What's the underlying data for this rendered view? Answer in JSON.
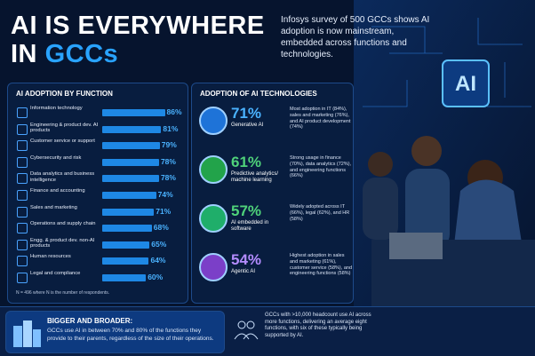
{
  "header": {
    "title_line1": "AI IS EVERYWHERE",
    "title_line2_prefix": "IN ",
    "title_line2_highlight": "GCCs",
    "subtitle": "Infosys survey of 500 GCCs shows AI adoption is now mainstream, embedded across functions and technologies."
  },
  "chart_data": {
    "type": "bar",
    "title": "AI ADOPTION BY FUNCTION",
    "categories": [
      "Information technology",
      "Engineering & product dev. AI products",
      "Customer service or support",
      "Cybersecurity and risk",
      "Data analytics and business intelligence",
      "Finance and accounting",
      "Sales and marketing",
      "Operations and supply chain",
      "Engg. & product dev. non-AI products",
      "Human resources",
      "Legal and compliance"
    ],
    "values": [
      86,
      81,
      79,
      78,
      78,
      74,
      71,
      68,
      65,
      64,
      60
    ],
    "value_labels": [
      "86%",
      "81%",
      "79%",
      "78%",
      "78%",
      "74%",
      "71%",
      "68%",
      "65%",
      "64%",
      "60%"
    ],
    "xlim": [
      0,
      100
    ],
    "color": "#1e88e5",
    "note": "N = 496 where N is the number of respondents."
  },
  "technologies": {
    "title": "ADOPTION OF AI TECHNOLOGIES",
    "items": [
      {
        "percent": "71%",
        "name": "Generative AI",
        "detail": "Most adoption in IT (84%), sales and marketing (76%), and AI product development (74%)"
      },
      {
        "percent": "61%",
        "name": "Predictive analytics/ machine learning",
        "detail": "Strong usage in finance (70%), data analytics (72%), and engineering functions (66%)"
      },
      {
        "percent": "57%",
        "name": "AI embedded in software",
        "detail": "Widely adopted across IT (66%), legal (62%), and HR (58%)"
      },
      {
        "percent": "54%",
        "name": "Agentic AI",
        "detail": "Highest adoption in sales and marketing (61%), customer service (58%), and engineering functions (58%)"
      }
    ]
  },
  "footer": {
    "heading": "BIGGER AND BROADER:",
    "text": "GCCs use AI in between 70% and 80% of the functions they provide to their parents, regardless of the size of their operations.",
    "side_text": "GCCs with >10,000 headcount use AI across more functions, delivering an average eight functions, with six of these typically being supported by AI."
  },
  "photo_sign": "AI"
}
